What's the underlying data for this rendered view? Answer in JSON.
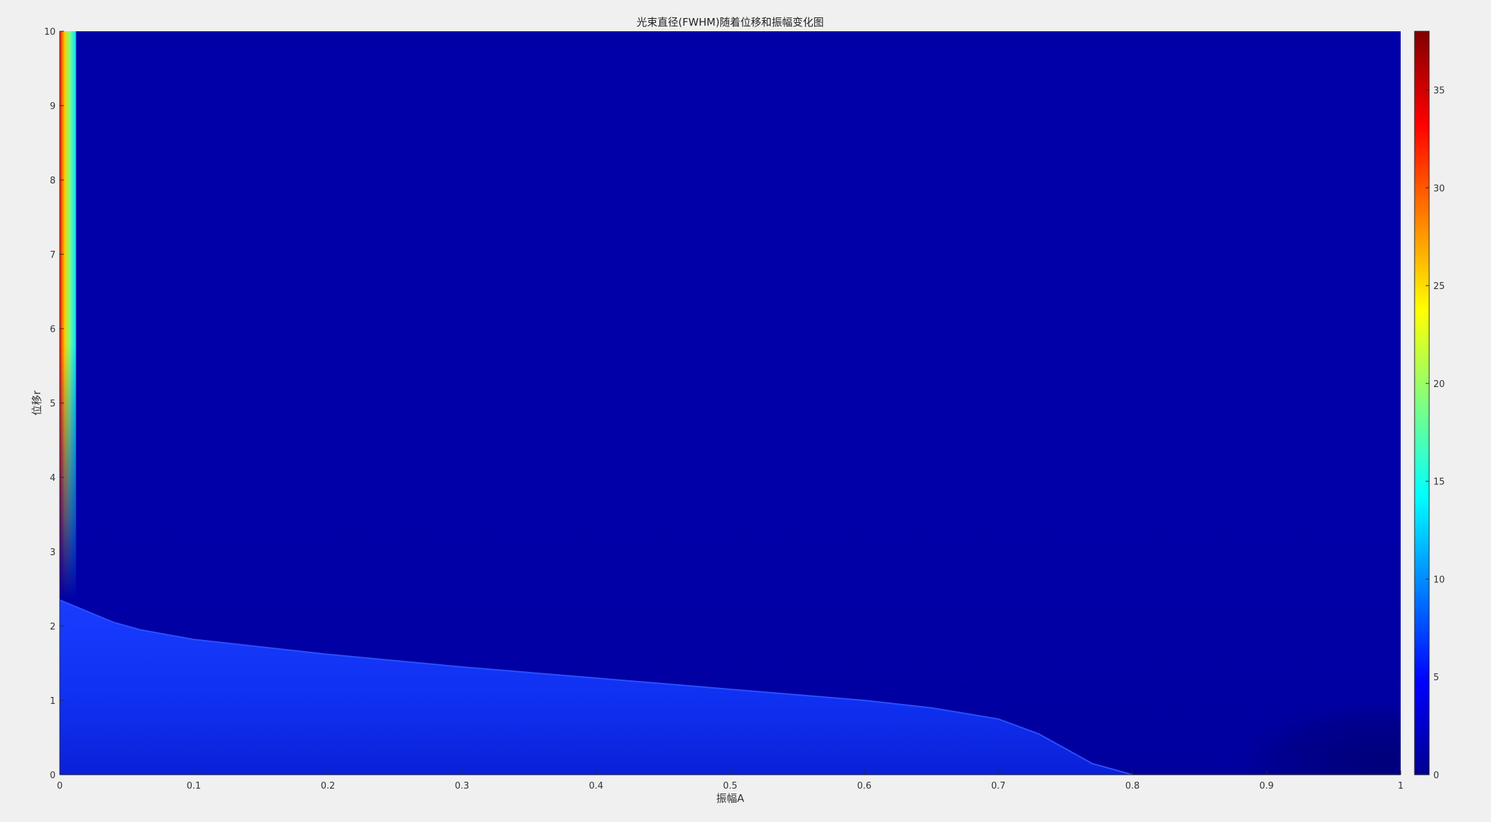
{
  "chart_data": {
    "type": "heatmap",
    "title": "光束直径(FWHM)随着位移和振幅变化图",
    "xlabel": "振幅A",
    "ylabel": "位移r",
    "xlim": [
      0,
      1
    ],
    "ylim": [
      0,
      10
    ],
    "x_ticks": [
      "0",
      "0.1",
      "0.2",
      "0.3",
      "0.4",
      "0.5",
      "0.6",
      "0.7",
      "0.8",
      "0.9",
      "1"
    ],
    "y_ticks": [
      "0",
      "1",
      "2",
      "3",
      "4",
      "5",
      "6",
      "7",
      "8",
      "9",
      "10"
    ],
    "colormap": "jet",
    "colorbar": {
      "min": 0,
      "max": 38,
      "ticks": [
        "0",
        "5",
        "10",
        "15",
        "20",
        "25",
        "30",
        "35"
      ],
      "placement": "right"
    },
    "grid": false,
    "background_value": 2.5,
    "high_strip": {
      "amplitude_range": [
        0,
        0.008
      ],
      "values_at_r": [
        {
          "r": 10,
          "values": [
            38,
            30,
            22,
            14
          ]
        },
        {
          "r": 7,
          "values": [
            30,
            24,
            18,
            12
          ]
        },
        {
          "r": 5,
          "values": [
            18,
            15,
            12,
            9
          ]
        },
        {
          "r": 3,
          "values": [
            9,
            8,
            7,
            6
          ]
        }
      ]
    },
    "boundary_region": {
      "description_value_inside": 5,
      "boundary_points": [
        {
          "A": 0.0,
          "r": 2.35
        },
        {
          "A": 0.02,
          "r": 2.2
        },
        {
          "A": 0.04,
          "r": 2.05
        },
        {
          "A": 0.06,
          "r": 1.95
        },
        {
          "A": 0.1,
          "r": 1.82
        },
        {
          "A": 0.2,
          "r": 1.62
        },
        {
          "A": 0.3,
          "r": 1.45
        },
        {
          "A": 0.4,
          "r": 1.3
        },
        {
          "A": 0.5,
          "r": 1.15
        },
        {
          "A": 0.6,
          "r": 1.0
        },
        {
          "A": 0.65,
          "r": 0.9
        },
        {
          "A": 0.7,
          "r": 0.75
        },
        {
          "A": 0.73,
          "r": 0.55
        },
        {
          "A": 0.75,
          "r": 0.35
        },
        {
          "A": 0.77,
          "r": 0.15
        },
        {
          "A": 0.8,
          "r": 0.0
        }
      ],
      "value_range": [
        4,
        6.5
      ]
    },
    "low_region": {
      "amplitude_start": 0.84,
      "value": 0.5
    }
  }
}
